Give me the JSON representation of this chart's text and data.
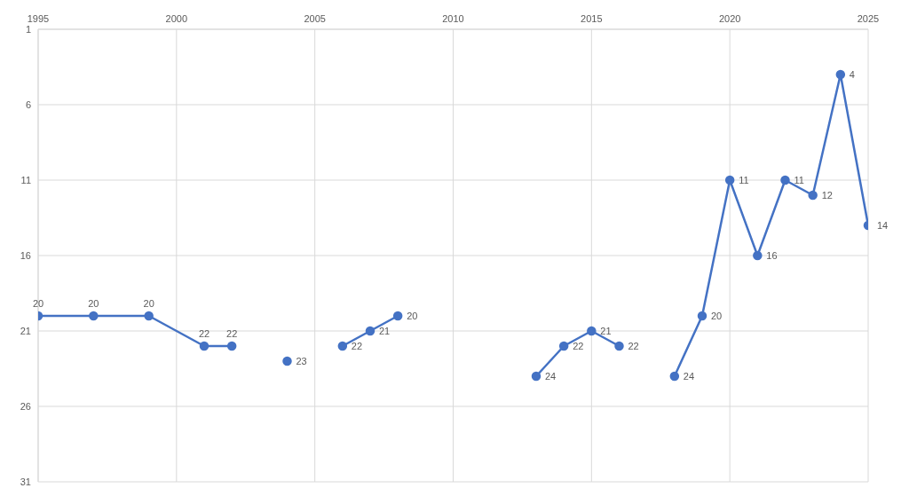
{
  "chart_data": {
    "type": "line",
    "x": [
      1995,
      1997,
      1999,
      2001,
      2002,
      2003,
      2004,
      2005,
      2006,
      2007,
      2008,
      2009,
      2013,
      2014,
      2015,
      2016,
      2017,
      2018,
      2019,
      2020,
      2021,
      2022,
      2023,
      2024,
      2025
    ],
    "series": [
      {
        "color": "#4472c4",
        "values": [
          20,
          20,
          20,
          22,
          22,
          null,
          23,
          null,
          22,
          21,
          20,
          null,
          24,
          22,
          21,
          22,
          null,
          24,
          20,
          11,
          16,
          11,
          12,
          4,
          14
        ]
      }
    ],
    "xlim": [
      1995,
      2025
    ],
    "xticks": [
      1995,
      2000,
      2005,
      2010,
      2015,
      2020,
      2025
    ],
    "ylim": [
      31,
      1
    ],
    "yticks": [
      1,
      6,
      11,
      16,
      21,
      26,
      31
    ],
    "grid": true,
    "marker": "circle",
    "line_style": "solid",
    "data_labels": true
  }
}
